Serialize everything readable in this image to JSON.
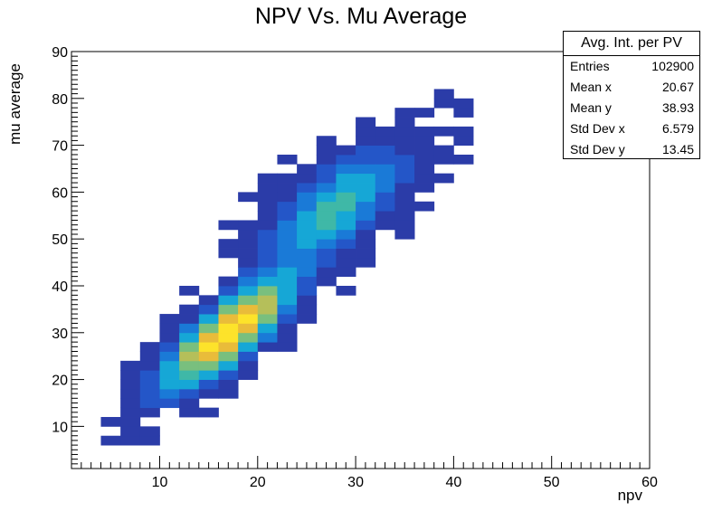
{
  "chart_data": {
    "type": "heatmap",
    "title": "NPV Vs. Mu Average",
    "xlabel": "npv",
    "ylabel": "mu average",
    "xlim": [
      1,
      60
    ],
    "ylim": [
      1,
      90
    ],
    "xticks": [
      10,
      20,
      30,
      40,
      50,
      60
    ],
    "yticks": [
      10,
      20,
      30,
      40,
      50,
      60,
      70,
      80,
      90
    ],
    "bin_size": 2,
    "colormap": [
      "#3a1d8c",
      "#2b3ca8",
      "#2456c8",
      "#1a7ad7",
      "#16a7d6",
      "#3fb8a7",
      "#79bf7e",
      "#b5bf5a",
      "#e9bc3a",
      "#fde32a"
    ],
    "components": [
      {
        "mean_npv": 17,
        "mean_mu": 30,
        "std_npv": 4.2,
        "std_mu": 7.5,
        "rho": 0.8,
        "weight": 1.0
      },
      {
        "mean_npv": 28,
        "mean_mu": 57,
        "std_npv": 4.5,
        "std_mu": 8,
        "rho": 0.7,
        "weight": 0.45
      }
    ],
    "stats_box": {
      "title": "Avg. Int. per PV",
      "entries": [
        {
          "label": "Entries",
          "value": "102900"
        },
        {
          "label": "Mean x",
          "value": "20.67"
        },
        {
          "label": "Mean y",
          "value": "38.93"
        },
        {
          "label": "Std Dev x",
          "value": "6.579"
        },
        {
          "label": "Std Dev y",
          "value": "13.45"
        }
      ]
    },
    "legend_placement": "top-right",
    "grid": false
  }
}
